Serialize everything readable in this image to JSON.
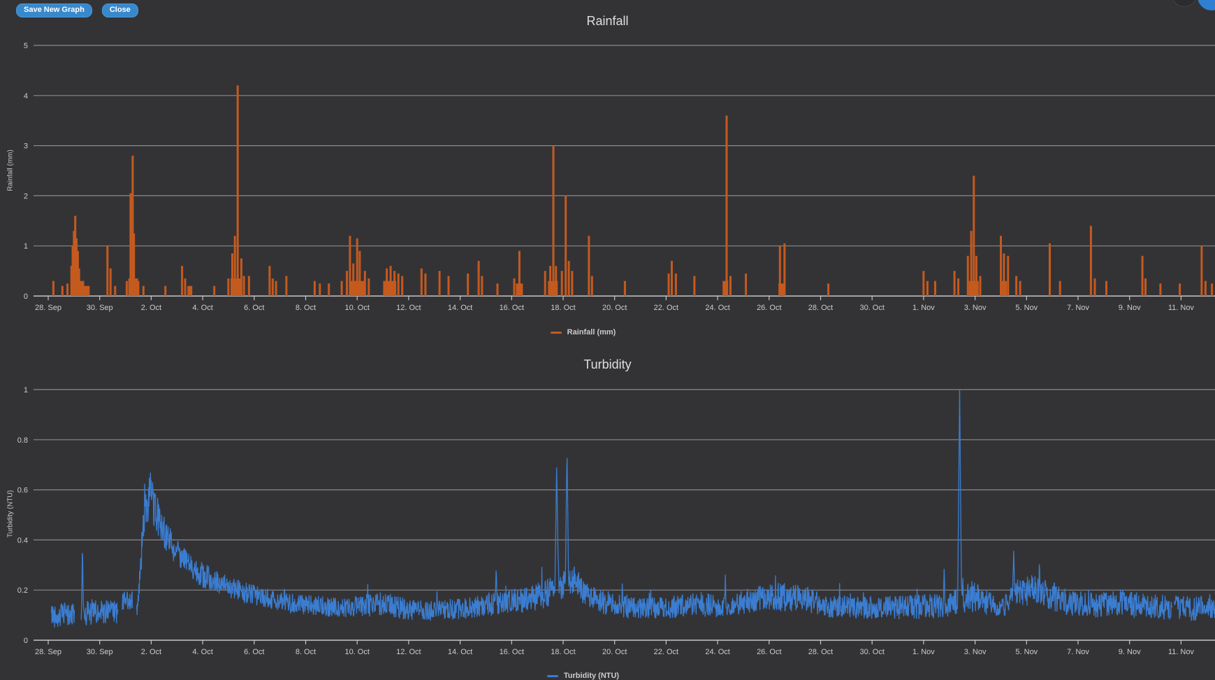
{
  "toolbar": {
    "save_label": "Save New Graph",
    "close_label": "Close"
  },
  "colors": {
    "background": "#333336",
    "gridline": "#8A8A8D",
    "axis_line": "#C6C6C9",
    "text": "#CCCCCF",
    "button": "#3888CC",
    "rainfall": "#C55A1E",
    "turbidity": "#3B7DD1"
  },
  "chart_data": [
    {
      "type": "column",
      "title": "Rainfall",
      "ylabel": "Rainfall (mm)",
      "legend": "Rainfall (mm)",
      "color": "#C55A1E",
      "ylim": [
        0,
        5
      ],
      "y_ticks": [
        0,
        1,
        2,
        3,
        4,
        5
      ],
      "x_tick_labels": [
        "28. Sep",
        "30. Sep",
        "2. Oct",
        "4. Oct",
        "6. Oct",
        "8. Oct",
        "10. Oct",
        "12. Oct",
        "14. Oct",
        "16. Oct",
        "18. Oct",
        "20. Oct",
        "22. Oct",
        "24. Oct",
        "26. Oct",
        "28. Oct",
        "30. Oct",
        "1. Nov",
        "3. Nov",
        "5. Nov",
        "7. Nov",
        "9. Nov",
        "11. Nov"
      ],
      "x_day_step_per_tick": 2,
      "bars_day_mm_width": [
        [
          0.2,
          0.3
        ],
        [
          0.55,
          0.2
        ],
        [
          0.75,
          0.25
        ],
        [
          0.9,
          0.6
        ],
        [
          0.95,
          1.0
        ],
        [
          1.0,
          1.3
        ],
        [
          1.05,
          1.6
        ],
        [
          1.1,
          1.15
        ],
        [
          1.15,
          0.9
        ],
        [
          1.2,
          0.55
        ],
        [
          1.15,
          0.3,
          18
        ],
        [
          1.35,
          0.3
        ],
        [
          1.5,
          0.2,
          8
        ],
        [
          2.3,
          1.0
        ],
        [
          2.42,
          0.55
        ],
        [
          2.6,
          0.2
        ],
        [
          3.05,
          0.3
        ],
        [
          3.2,
          2.05
        ],
        [
          3.28,
          2.8
        ],
        [
          3.33,
          1.25
        ],
        [
          3.3,
          0.35,
          14
        ],
        [
          3.5,
          0.3
        ],
        [
          3.7,
          0.2
        ],
        [
          4.55,
          0.2
        ],
        [
          5.2,
          0.6
        ],
        [
          5.32,
          0.35
        ],
        [
          5.5,
          0.2,
          7
        ],
        [
          6.45,
          0.2
        ],
        [
          7.0,
          0.35
        ],
        [
          7.15,
          0.85
        ],
        [
          7.25,
          1.2
        ],
        [
          7.36,
          4.2
        ],
        [
          7.3,
          0.35,
          16
        ],
        [
          7.5,
          0.75
        ],
        [
          7.6,
          0.4
        ],
        [
          7.8,
          0.4
        ],
        [
          8.6,
          0.6
        ],
        [
          8.72,
          0.35
        ],
        [
          8.85,
          0.3
        ],
        [
          9.25,
          0.4
        ],
        [
          10.35,
          0.3
        ],
        [
          10.55,
          0.25
        ],
        [
          10.9,
          0.25
        ],
        [
          11.4,
          0.3
        ],
        [
          11.6,
          0.5
        ],
        [
          11.72,
          1.2
        ],
        [
          11.85,
          0.65
        ],
        [
          12.0,
          1.15
        ],
        [
          12.1,
          0.9
        ],
        [
          12.0,
          0.3,
          22
        ],
        [
          12.3,
          0.5
        ],
        [
          12.45,
          0.35
        ],
        [
          13.05,
          0.3
        ],
        [
          13.15,
          0.55
        ],
        [
          13.3,
          0.6
        ],
        [
          13.45,
          0.5
        ],
        [
          13.3,
          0.3,
          16
        ],
        [
          13.6,
          0.45
        ],
        [
          13.75,
          0.4
        ],
        [
          14.5,
          0.55
        ],
        [
          14.65,
          0.45
        ],
        [
          15.2,
          0.5
        ],
        [
          15.55,
          0.4
        ],
        [
          16.3,
          0.45
        ],
        [
          16.72,
          0.7
        ],
        [
          16.85,
          0.4
        ],
        [
          17.45,
          0.25
        ],
        [
          18.1,
          0.35
        ],
        [
          18.3,
          0.9
        ],
        [
          18.3,
          0.25,
          10
        ],
        [
          19.3,
          0.5
        ],
        [
          19.5,
          0.6
        ],
        [
          19.62,
          3.0
        ],
        [
          19.72,
          0.6
        ],
        [
          19.6,
          0.3,
          14
        ],
        [
          19.95,
          0.5
        ],
        [
          20.1,
          2.0
        ],
        [
          20.22,
          0.7
        ],
        [
          20.35,
          0.5
        ],
        [
          21.0,
          1.2
        ],
        [
          21.12,
          0.4
        ],
        [
          22.4,
          0.3
        ],
        [
          24.1,
          0.45
        ],
        [
          24.22,
          0.7
        ],
        [
          24.38,
          0.45
        ],
        [
          25.1,
          0.4
        ],
        [
          26.35,
          3.6
        ],
        [
          26.3,
          0.3,
          8
        ],
        [
          26.5,
          0.4
        ],
        [
          27.1,
          0.45
        ],
        [
          28.42,
          1.0
        ],
        [
          28.6,
          1.05
        ],
        [
          28.5,
          0.25,
          10
        ],
        [
          30.3,
          0.25
        ],
        [
          34.0,
          0.5
        ],
        [
          34.15,
          0.3
        ],
        [
          34.45,
          0.3
        ],
        [
          35.2,
          0.5
        ],
        [
          35.35,
          0.35
        ],
        [
          35.72,
          0.8
        ],
        [
          35.85,
          1.3
        ],
        [
          35.95,
          2.4
        ],
        [
          36.05,
          0.8
        ],
        [
          35.95,
          0.3,
          14
        ],
        [
          36.2,
          0.4
        ],
        [
          37.0,
          1.2
        ],
        [
          37.12,
          0.85
        ],
        [
          37.28,
          0.8
        ],
        [
          37.1,
          0.3,
          10
        ],
        [
          37.6,
          0.4
        ],
        [
          37.75,
          0.3
        ],
        [
          38.9,
          1.05
        ],
        [
          39.3,
          0.3
        ],
        [
          40.5,
          1.4
        ],
        [
          40.65,
          0.35
        ],
        [
          41.1,
          0.3
        ],
        [
          42.5,
          0.8
        ],
        [
          42.62,
          0.35
        ],
        [
          43.2,
          0.25
        ],
        [
          43.95,
          0.25
        ],
        [
          44.8,
          1.0
        ],
        [
          44.95,
          0.3
        ],
        [
          45.2,
          0.25
        ]
      ]
    },
    {
      "type": "line",
      "title": "Turbidity",
      "ylabel": "Turbidity (NTU)",
      "legend": "Turbidity (NTU)",
      "color": "#3B7DD1",
      "ylim": [
        0,
        1
      ],
      "y_ticks": [
        0,
        0.2,
        0.4,
        0.6,
        0.8,
        1
      ],
      "x_tick_labels": [
        "28. Sep",
        "30. Sep",
        "2. Oct",
        "4. Oct",
        "6. Oct",
        "8. Oct",
        "10. Oct",
        "12. Oct",
        "14. Oct",
        "16. Oct",
        "18. Oct",
        "20. Oct",
        "22. Oct",
        "24. Oct",
        "26. Oct",
        "28. Oct",
        "30. Oct",
        "1. Nov",
        "3. Nov",
        "5. Nov",
        "7. Nov",
        "9. Nov",
        "11. Nov"
      ],
      "x_day_step_per_tick": 2,
      "x_range_days": [
        0.12,
        45.35
      ],
      "baseline_envelope_day_mean_amp": [
        [
          0.1,
          0.1,
          0.05
        ],
        [
          1.2,
          0.1,
          0.05
        ],
        [
          1.5,
          0.11,
          0.055
        ],
        [
          2.7,
          0.11,
          0.05
        ],
        [
          2.9,
          0.16,
          0.04
        ],
        [
          3.25,
          0.16,
          0.04
        ],
        [
          3.45,
          0.12,
          0.03
        ],
        [
          3.6,
          0.32,
          0.07
        ],
        [
          3.8,
          0.55,
          0.09
        ],
        [
          3.95,
          0.58,
          0.09
        ],
        [
          4.15,
          0.52,
          0.08
        ],
        [
          4.4,
          0.46,
          0.07
        ],
        [
          4.8,
          0.38,
          0.06
        ],
        [
          5.3,
          0.32,
          0.05
        ],
        [
          6.0,
          0.26,
          0.05
        ],
        [
          7.0,
          0.21,
          0.045
        ],
        [
          8.0,
          0.18,
          0.04
        ],
        [
          9.0,
          0.155,
          0.04
        ],
        [
          10.0,
          0.14,
          0.04
        ],
        [
          11.5,
          0.13,
          0.04
        ],
        [
          13.0,
          0.145,
          0.05
        ],
        [
          14.2,
          0.12,
          0.04
        ],
        [
          15.5,
          0.12,
          0.04
        ],
        [
          16.6,
          0.13,
          0.045
        ],
        [
          17.6,
          0.155,
          0.05
        ],
        [
          18.6,
          0.16,
          0.05
        ],
        [
          19.4,
          0.19,
          0.06
        ],
        [
          19.9,
          0.22,
          0.06
        ],
        [
          20.4,
          0.24,
          0.07
        ],
        [
          20.8,
          0.19,
          0.05
        ],
        [
          21.6,
          0.15,
          0.05
        ],
        [
          22.6,
          0.13,
          0.045
        ],
        [
          24.0,
          0.13,
          0.045
        ],
        [
          25.3,
          0.145,
          0.05
        ],
        [
          26.1,
          0.13,
          0.045
        ],
        [
          27.3,
          0.16,
          0.05
        ],
        [
          28.3,
          0.175,
          0.06
        ],
        [
          29.3,
          0.165,
          0.055
        ],
        [
          30.3,
          0.135,
          0.045
        ],
        [
          32.0,
          0.13,
          0.045
        ],
        [
          33.5,
          0.13,
          0.05
        ],
        [
          34.8,
          0.14,
          0.05
        ],
        [
          35.5,
          0.165,
          0.055
        ],
        [
          36.0,
          0.17,
          0.06
        ],
        [
          36.5,
          0.15,
          0.05
        ],
        [
          37.1,
          0.14,
          0.045
        ],
        [
          37.7,
          0.19,
          0.06
        ],
        [
          38.3,
          0.205,
          0.065
        ],
        [
          38.9,
          0.18,
          0.06
        ],
        [
          39.6,
          0.15,
          0.05
        ],
        [
          40.6,
          0.14,
          0.05
        ],
        [
          41.6,
          0.15,
          0.055
        ],
        [
          42.6,
          0.135,
          0.05
        ],
        [
          43.6,
          0.13,
          0.05
        ],
        [
          44.4,
          0.125,
          0.05
        ],
        [
          45.3,
          0.13,
          0.05
        ]
      ],
      "spikes_day_peak_width": [
        [
          1.33,
          0.4,
          0.05
        ],
        [
          3.75,
          0.68,
          0.05
        ],
        [
          3.97,
          0.66,
          0.05
        ],
        [
          17.4,
          0.3,
          0.07
        ],
        [
          19.75,
          0.7,
          0.1
        ],
        [
          20.15,
          0.77,
          0.09
        ],
        [
          22.3,
          0.25,
          0.05
        ],
        [
          23.4,
          0.22,
          0.05
        ],
        [
          26.3,
          0.27,
          0.05
        ],
        [
          34.8,
          0.3,
          0.06
        ],
        [
          35.4,
          1.0,
          0.09
        ],
        [
          37.5,
          0.35,
          0.09
        ],
        [
          38.5,
          0.33,
          0.06
        ]
      ],
      "gaps_day": [
        [
          1.02,
          1.28
        ],
        [
          2.72,
          2.86
        ],
        [
          3.28,
          3.42
        ],
        [
          43.66,
          43.74
        ]
      ]
    }
  ]
}
